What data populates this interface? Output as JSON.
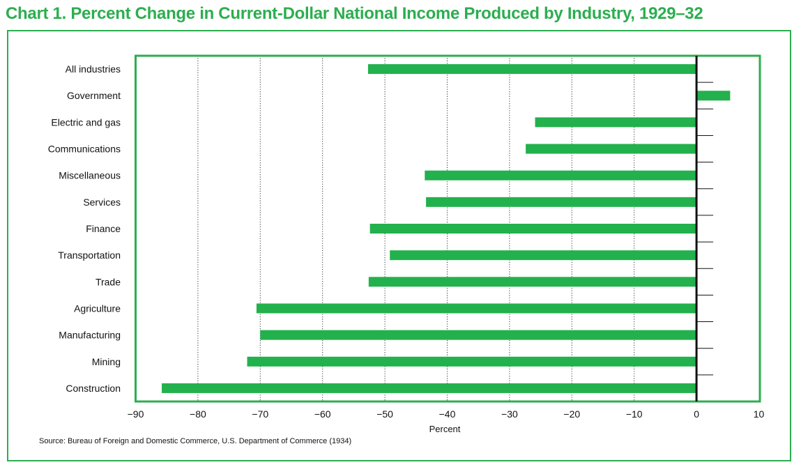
{
  "title": "Chart 1. Percent Change in Current-Dollar National Income Produced by Industry, 1929–32",
  "source": "Source: Bureau of Foreign and Domestic Commerce,  U.S. Department of Commerce (1934)",
  "colors": {
    "accent": "#2cae4f",
    "bar": "#22b14c",
    "axis": "#111111"
  },
  "chart_data": {
    "type": "bar",
    "orientation": "horizontal",
    "categories": [
      "All industries",
      "Government",
      "Electric and gas",
      "Communications",
      "Miscellaneous",
      "Services",
      "Finance",
      "Transportation",
      "Trade",
      "Agriculture",
      "Manufacturing",
      "Mining",
      "Construction"
    ],
    "values": [
      -52.7,
      5.4,
      -25.9,
      -27.4,
      -43.6,
      -43.4,
      -52.4,
      -49.2,
      -52.6,
      -70.6,
      -70.0,
      -72.1,
      -85.8
    ],
    "xlabel": "Percent",
    "ylabel": "",
    "xlim": [
      -90,
      10
    ],
    "xticks": [
      "−90",
      "−80",
      "−70",
      "−60",
      "−50",
      "−40",
      "−30",
      "−20",
      "−10",
      "0",
      "10"
    ],
    "grid": "vertical dotted",
    "legend": "none"
  }
}
